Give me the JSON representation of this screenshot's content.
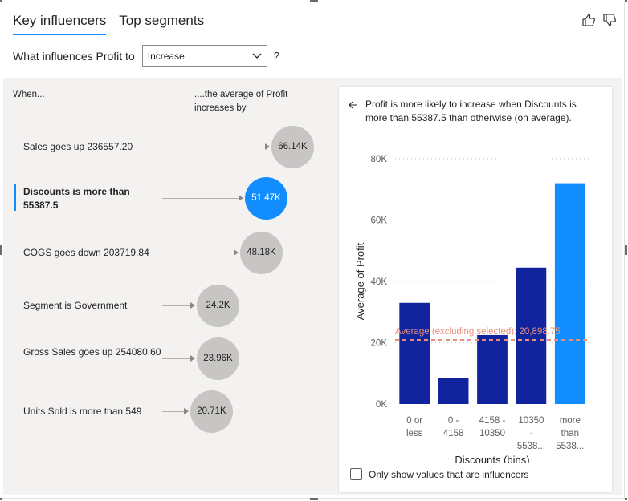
{
  "tabs": [
    {
      "label": "Key influencers",
      "active": true
    },
    {
      "label": "Top segments",
      "active": false
    }
  ],
  "feedback": {
    "like_icon": "thumbs-up-icon",
    "dislike_icon": "thumbs-down-icon"
  },
  "question": {
    "prefix": "What influences Profit to",
    "selected": "Increase",
    "help": "?"
  },
  "columns": {
    "when": "When...",
    "average": "....the average of Profit increases by"
  },
  "influencers": [
    {
      "label": "Sales goes up 236557.20",
      "value": "66.14K",
      "selected": false
    },
    {
      "label": "Discounts is more than 55387.5",
      "value": "51.47K",
      "selected": true
    },
    {
      "label": "COGS goes down 203719.84",
      "value": "48.18K",
      "selected": false
    },
    {
      "label": "Segment is Government",
      "value": "24.2K",
      "selected": false
    },
    {
      "label": "Gross Sales goes up 254080.60",
      "value": "23.96K",
      "selected": false
    },
    {
      "label": "Units Sold is more than 549",
      "value": "20.71K",
      "selected": false
    }
  ],
  "detail": {
    "text": "Profit is more likely to increase when Discounts is more than 55387.5 than otherwise (on average).",
    "checkbox_label": "Only show values that are influencers"
  },
  "colors": {
    "accent": "#118dff",
    "bar": "#12239e",
    "bubble": "#c8c6c4",
    "average_line": "#e8907f"
  },
  "chart_data": {
    "type": "bar",
    "categories": [
      [
        "0 or",
        "less"
      ],
      [
        "0 -",
        "4158"
      ],
      [
        "4158 -",
        "10350"
      ],
      [
        "10350",
        "-",
        "5538..."
      ],
      [
        "more",
        "than",
        "5538..."
      ]
    ],
    "values": [
      33000,
      8500,
      22500,
      44500,
      72000
    ],
    "highlighted_index": 4,
    "ylabel": "Average of Profit",
    "xlabel": "Discounts (bins)",
    "yticks": [
      0,
      20000,
      40000,
      60000,
      80000
    ],
    "ytick_labels": [
      "0K",
      "20K",
      "40K",
      "60K",
      "80K"
    ],
    "ylim": [
      0,
      80000
    ],
    "average_line": {
      "value": 20898.75,
      "label": "Average (excluding selected): 20,898.75"
    },
    "grid": true
  }
}
